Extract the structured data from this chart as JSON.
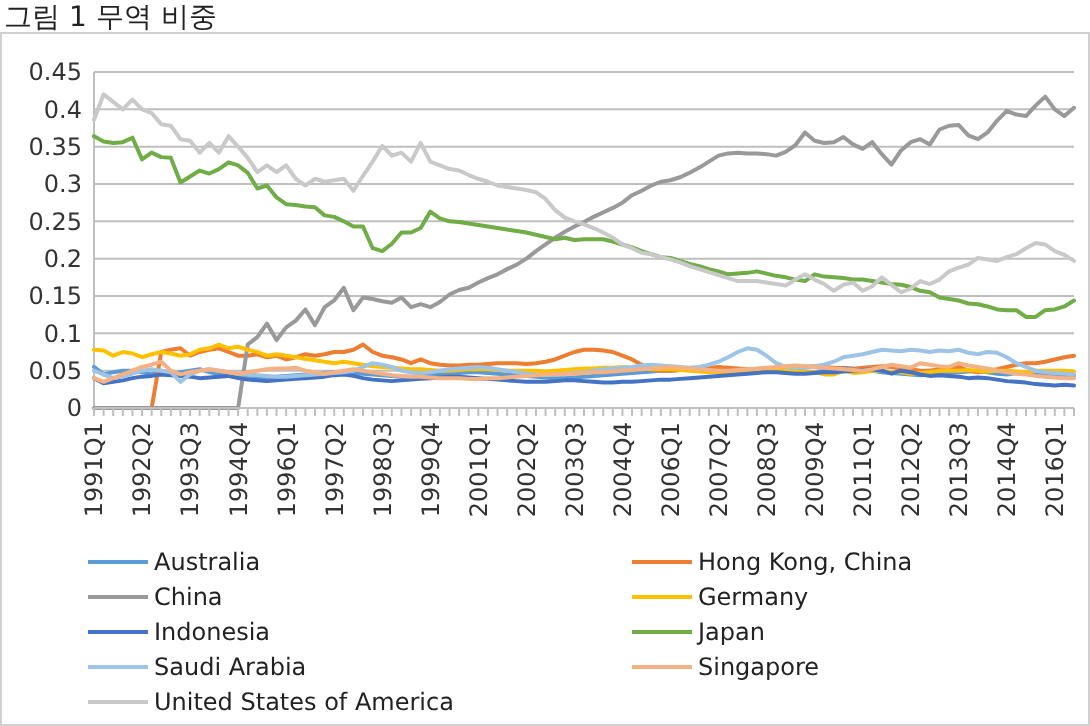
{
  "chart_data": {
    "type": "line",
    "title": "그림 1 무역 비중",
    "categories": [
      "1991Q1",
      null,
      null,
      null,
      null,
      "1992Q2",
      null,
      null,
      null,
      null,
      "1993Q3",
      null,
      null,
      null,
      null,
      "1994Q4",
      null,
      null,
      null,
      null,
      "1996Q1",
      null,
      null,
      null,
      null,
      "1997Q2",
      null,
      null,
      null,
      null,
      "1998Q3",
      null,
      null,
      null,
      null,
      "1999Q4",
      null,
      null,
      null,
      null,
      "2001Q1",
      null,
      null,
      null,
      null,
      "2002Q2",
      null,
      null,
      null,
      null,
      "2003Q3",
      null,
      null,
      null,
      null,
      "2004Q4",
      null,
      null,
      null,
      null,
      "2006Q1",
      null,
      null,
      null,
      null,
      "2007Q2",
      null,
      null,
      null,
      null,
      "2008Q3",
      null,
      null,
      null,
      null,
      "2009Q4",
      null,
      null,
      null,
      null,
      "2011Q1",
      null,
      null,
      null,
      null,
      "2012Q2",
      null,
      null,
      null,
      null,
      "2013Q3",
      null,
      null,
      null,
      null,
      "2014Q4",
      null,
      null,
      null,
      null,
      "2016Q1",
      null,
      null
    ],
    "ylim": [
      0,
      0.45
    ],
    "yticks": [
      0,
      0.05,
      0.1,
      0.15,
      0.2,
      0.25,
      0.3,
      0.35,
      0.4,
      0.45
    ],
    "grid": "y",
    "legend": "bottom",
    "marker": "none",
    "series": [
      {
        "name": "Australia",
        "color": "#5b9bd5",
        "values": [
          0.055,
          0.045,
          0.048,
          0.05,
          0.05,
          0.048,
          0.045,
          0.05,
          0.045,
          0.048,
          0.05,
          0.052,
          0.048,
          0.045,
          0.043,
          0.042,
          0.04,
          0.04,
          0.041,
          0.042,
          0.043,
          0.044,
          0.045,
          0.046,
          0.047,
          0.048,
          0.048,
          0.047,
          0.046,
          0.045,
          0.044,
          0.043,
          0.042,
          0.042,
          0.043,
          0.044,
          0.045,
          0.046,
          0.047,
          0.048,
          0.048,
          0.047,
          0.046,
          0.045,
          0.044,
          0.043,
          0.042,
          0.041,
          0.04,
          0.04,
          0.041,
          0.042,
          0.043,
          0.044,
          0.045,
          0.046,
          0.047,
          0.048,
          0.049,
          0.05,
          0.05,
          0.051,
          0.052,
          0.05,
          0.049,
          0.048,
          0.049,
          0.05,
          0.051,
          0.052,
          0.053,
          0.052,
          0.051,
          0.05,
          0.049,
          0.048,
          0.05,
          0.052,
          0.054,
          0.053,
          0.052,
          0.05,
          0.048,
          0.047,
          0.046,
          0.045,
          0.044,
          0.045,
          0.046,
          0.047,
          0.048,
          0.049,
          0.05,
          0.048,
          0.046,
          0.045,
          0.047,
          0.046,
          0.045,
          0.044,
          0.043,
          0.042,
          0.043
        ]
      },
      {
        "name": "Hong Kong, China",
        "color": "#ed7d31",
        "values": [
          null,
          null,
          null,
          null,
          null,
          null,
          0,
          0.075,
          0.078,
          0.08,
          0.07,
          0.075,
          0.078,
          0.08,
          0.075,
          0.07,
          0.07,
          0.072,
          0.068,
          0.07,
          0.065,
          0.068,
          0.072,
          0.07,
          0.072,
          0.075,
          0.075,
          0.078,
          0.085,
          0.075,
          0.07,
          0.068,
          0.065,
          0.06,
          0.065,
          0.06,
          0.058,
          0.057,
          0.057,
          0.058,
          0.058,
          0.059,
          0.06,
          0.06,
          0.06,
          0.059,
          0.06,
          0.062,
          0.065,
          0.07,
          0.075,
          0.078,
          0.078,
          0.077,
          0.075,
          0.07,
          0.065,
          0.058,
          0.052,
          0.05,
          0.05,
          0.051,
          0.052,
          0.053,
          0.054,
          0.055,
          0.054,
          0.053,
          0.052,
          0.052,
          0.052,
          0.053,
          0.054,
          0.055,
          0.055,
          0.056,
          0.055,
          0.054,
          0.053,
          0.052,
          0.054,
          0.055,
          0.056,
          0.055,
          0.053,
          0.052,
          0.05,
          0.05,
          0.052,
          0.054,
          0.055,
          0.05,
          0.048,
          0.05,
          0.052,
          0.055,
          0.058,
          0.06,
          0.06,
          0.062,
          0.065,
          0.068,
          0.07
        ]
      },
      {
        "name": "China",
        "color": "#999999",
        "values": [
          0,
          0,
          0,
          0,
          0,
          0,
          0,
          0,
          0,
          0,
          0,
          0,
          0,
          0,
          0,
          0,
          0.085,
          0.095,
          0.113,
          0.091,
          0.108,
          0.117,
          0.132,
          0.111,
          0.135,
          0.144,
          0.161,
          0.131,
          0.148,
          0.146,
          0.143,
          0.141,
          0.148,
          0.135,
          0.139,
          0.135,
          0.142,
          0.152,
          0.158,
          0.161,
          0.168,
          0.174,
          0.179,
          0.186,
          0.192,
          0.2,
          0.21,
          0.219,
          0.228,
          0.236,
          0.243,
          0.249,
          0.256,
          0.262,
          0.268,
          0.275,
          0.285,
          0.291,
          0.298,
          0.303,
          0.305,
          0.309,
          0.315,
          0.322,
          0.33,
          0.338,
          0.341,
          0.342,
          0.341,
          0.341,
          0.34,
          0.338,
          0.343,
          0.352,
          0.369,
          0.358,
          0.355,
          0.356,
          0.363,
          0.353,
          0.347,
          0.356,
          0.34,
          0.326,
          0.345,
          0.356,
          0.36,
          0.353,
          0.373,
          0.378,
          0.379,
          0.365,
          0.36,
          0.369,
          0.385,
          0.398,
          0.393,
          0.391,
          0.405,
          0.417,
          0.4,
          0.391,
          0.402
        ]
      },
      {
        "name": "Germany",
        "color": "#ffc000",
        "values": [
          0.078,
          0.077,
          0.07,
          0.075,
          0.073,
          0.068,
          0.072,
          0.075,
          0.073,
          0.07,
          0.072,
          0.078,
          0.08,
          0.085,
          0.08,
          0.082,
          0.078,
          0.075,
          0.07,
          0.072,
          0.07,
          0.068,
          0.066,
          0.064,
          0.062,
          0.06,
          0.062,
          0.06,
          0.058,
          0.056,
          0.055,
          0.054,
          0.053,
          0.052,
          0.052,
          0.051,
          0.05,
          0.05,
          0.051,
          0.052,
          0.052,
          0.052,
          0.051,
          0.05,
          0.05,
          0.05,
          0.05,
          0.049,
          0.05,
          0.051,
          0.052,
          0.053,
          0.053,
          0.054,
          0.054,
          0.055,
          0.054,
          0.053,
          0.052,
          0.052,
          0.052,
          0.051,
          0.05,
          0.049,
          0.048,
          0.048,
          0.047,
          0.047,
          0.048,
          0.05,
          0.052,
          0.053,
          0.052,
          0.05,
          0.048,
          0.048,
          0.045,
          0.045,
          0.05,
          0.047,
          0.048,
          0.05,
          0.05,
          0.048,
          0.048,
          0.046,
          0.047,
          0.048,
          0.05,
          0.05,
          0.05,
          0.051,
          0.05,
          0.049,
          0.05,
          0.05,
          0.049,
          0.048,
          0.05,
          0.05,
          0.05,
          0.05,
          0.049
        ]
      },
      {
        "name": "Indonesia",
        "color": "#4472c4",
        "values": [
          0.04,
          0.033,
          0.035,
          0.037,
          0.04,
          0.042,
          0.043,
          0.045,
          0.044,
          0.043,
          0.042,
          0.04,
          0.041,
          0.042,
          0.043,
          0.04,
          0.038,
          0.037,
          0.036,
          0.037,
          0.038,
          0.039,
          0.04,
          0.041,
          0.042,
          0.044,
          0.045,
          0.043,
          0.04,
          0.038,
          0.037,
          0.036,
          0.037,
          0.038,
          0.039,
          0.04,
          0.041,
          0.042,
          0.042,
          0.041,
          0.04,
          0.039,
          0.038,
          0.037,
          0.036,
          0.035,
          0.035,
          0.035,
          0.036,
          0.037,
          0.037,
          0.036,
          0.035,
          0.034,
          0.034,
          0.035,
          0.035,
          0.036,
          0.037,
          0.038,
          0.038,
          0.039,
          0.04,
          0.041,
          0.042,
          0.043,
          0.044,
          0.045,
          0.046,
          0.047,
          0.048,
          0.048,
          0.047,
          0.046,
          0.046,
          0.047,
          0.048,
          0.048,
          0.049,
          0.05,
          0.051,
          0.052,
          0.05,
          0.046,
          0.05,
          0.048,
          0.045,
          0.043,
          0.044,
          0.043,
          0.042,
          0.04,
          0.041,
          0.04,
          0.038,
          0.036,
          0.035,
          0.034,
          0.032,
          0.031,
          0.03,
          0.031,
          0.03
        ]
      },
      {
        "name": "Japan",
        "color": "#70ad47",
        "values": [
          0.364,
          0.357,
          0.355,
          0.356,
          0.362,
          0.333,
          0.342,
          0.336,
          0.335,
          0.302,
          0.31,
          0.318,
          0.314,
          0.32,
          0.329,
          0.325,
          0.315,
          0.294,
          0.298,
          0.282,
          0.273,
          0.272,
          0.27,
          0.269,
          0.258,
          0.256,
          0.25,
          0.243,
          0.243,
          0.214,
          0.21,
          0.22,
          0.235,
          0.235,
          0.241,
          0.263,
          0.254,
          0.25,
          0.249,
          0.247,
          0.245,
          0.243,
          0.241,
          0.239,
          0.237,
          0.235,
          0.232,
          0.229,
          0.226,
          0.228,
          0.225,
          0.226,
          0.226,
          0.226,
          0.223,
          0.219,
          0.215,
          0.21,
          0.206,
          0.202,
          0.201,
          0.197,
          0.193,
          0.19,
          0.186,
          0.183,
          0.179,
          0.18,
          0.181,
          0.183,
          0.18,
          0.177,
          0.175,
          0.172,
          0.17,
          0.179,
          0.176,
          0.175,
          0.174,
          0.172,
          0.172,
          0.17,
          0.168,
          0.166,
          0.165,
          0.162,
          0.157,
          0.155,
          0.148,
          0.146,
          0.144,
          0.14,
          0.139,
          0.136,
          0.132,
          0.131,
          0.131,
          0.122,
          0.122,
          0.131,
          0.132,
          0.136,
          0.144
        ]
      },
      {
        "name": "Saudi Arabia",
        "color": "#9dc3e6",
        "values": [
          0.05,
          0.045,
          0.04,
          0.042,
          0.046,
          0.05,
          0.052,
          0.05,
          0.048,
          0.035,
          0.045,
          0.05,
          0.052,
          0.05,
          0.048,
          0.046,
          0.045,
          0.044,
          0.043,
          0.042,
          0.042,
          0.043,
          0.044,
          0.045,
          0.046,
          0.047,
          0.048,
          0.05,
          0.055,
          0.06,
          0.058,
          0.055,
          0.05,
          0.048,
          0.047,
          0.048,
          0.05,
          0.052,
          0.053,
          0.054,
          0.055,
          0.054,
          0.052,
          0.05,
          0.048,
          0.046,
          0.045,
          0.044,
          0.045,
          0.046,
          0.047,
          0.048,
          0.05,
          0.052,
          0.053,
          0.054,
          0.055,
          0.057,
          0.058,
          0.057,
          0.056,
          0.055,
          0.054,
          0.055,
          0.058,
          0.062,
          0.068,
          0.075,
          0.08,
          0.078,
          0.07,
          0.06,
          0.055,
          0.054,
          0.055,
          0.056,
          0.058,
          0.062,
          0.068,
          0.07,
          0.072,
          0.075,
          0.078,
          0.077,
          0.076,
          0.078,
          0.077,
          0.075,
          0.077,
          0.076,
          0.078,
          0.074,
          0.072,
          0.075,
          0.074,
          0.068,
          0.06,
          0.055,
          0.05,
          0.048,
          0.047,
          0.046,
          0.045
        ]
      },
      {
        "name": "Singapore",
        "color": "#f4b183",
        "values": [
          0.04,
          0.035,
          0.04,
          0.045,
          0.05,
          0.055,
          0.058,
          0.062,
          0.05,
          0.045,
          0.048,
          0.05,
          0.052,
          0.05,
          0.048,
          0.046,
          0.048,
          0.05,
          0.052,
          0.053,
          0.053,
          0.054,
          0.05,
          0.048,
          0.046,
          0.048,
          0.05,
          0.052,
          0.05,
          0.048,
          0.046,
          0.044,
          0.043,
          0.042,
          0.042,
          0.041,
          0.04,
          0.04,
          0.04,
          0.039,
          0.039,
          0.04,
          0.04,
          0.041,
          0.042,
          0.043,
          0.044,
          0.045,
          0.045,
          0.046,
          0.046,
          0.047,
          0.048,
          0.048,
          0.049,
          0.05,
          0.051,
          0.052,
          0.053,
          0.054,
          0.055,
          0.054,
          0.053,
          0.052,
          0.051,
          0.05,
          0.05,
          0.051,
          0.052,
          0.053,
          0.054,
          0.055,
          0.056,
          0.057,
          0.056,
          0.055,
          0.054,
          0.053,
          0.052,
          0.051,
          0.05,
          0.052,
          0.055,
          0.058,
          0.056,
          0.054,
          0.06,
          0.058,
          0.056,
          0.055,
          0.06,
          0.057,
          0.055,
          0.053,
          0.05,
          0.048,
          0.046,
          0.045,
          0.043,
          0.042,
          0.041,
          0.04,
          0.04
        ]
      },
      {
        "name": "United States of America",
        "color": "#c9c9c9",
        "values": [
          0.386,
          0.42,
          0.41,
          0.4,
          0.413,
          0.4,
          0.395,
          0.38,
          0.378,
          0.36,
          0.358,
          0.342,
          0.355,
          0.342,
          0.364,
          0.35,
          0.335,
          0.316,
          0.325,
          0.316,
          0.325,
          0.307,
          0.298,
          0.307,
          0.303,
          0.305,
          0.307,
          0.291,
          0.311,
          0.33,
          0.351,
          0.338,
          0.342,
          0.33,
          0.355,
          0.33,
          0.325,
          0.32,
          0.318,
          0.312,
          0.307,
          0.303,
          0.298,
          0.296,
          0.294,
          0.292,
          0.289,
          0.28,
          0.265,
          0.255,
          0.25,
          0.246,
          0.241,
          0.235,
          0.228,
          0.219,
          0.214,
          0.208,
          0.206,
          0.202,
          0.199,
          0.195,
          0.19,
          0.186,
          0.182,
          0.178,
          0.174,
          0.17,
          0.17,
          0.17,
          0.168,
          0.166,
          0.164,
          0.172,
          0.179,
          0.172,
          0.166,
          0.157,
          0.165,
          0.168,
          0.157,
          0.163,
          0.175,
          0.165,
          0.155,
          0.16,
          0.17,
          0.166,
          0.172,
          0.183,
          0.188,
          0.192,
          0.201,
          0.199,
          0.197,
          0.202,
          0.206,
          0.214,
          0.221,
          0.219,
          0.21,
          0.205,
          0.197
        ]
      }
    ]
  }
}
